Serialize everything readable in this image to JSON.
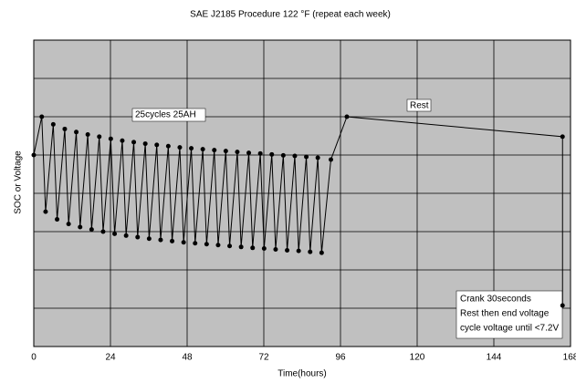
{
  "chart_data": {
    "type": "line",
    "title": "SAE J2185 Procedure 122 °F (repeat each week)",
    "x_label": "Time(hours)",
    "y_label": "SOC  or  Voltage",
    "x": [
      0,
      2.5,
      3.7,
      6.1,
      7.3,
      9.7,
      10.9,
      13.3,
      14.5,
      16.9,
      18.1,
      20.5,
      21.7,
      24.1,
      25.3,
      27.7,
      28.9,
      31.3,
      32.5,
      34.9,
      36.1,
      38.5,
      39.7,
      42.1,
      43.3,
      45.7,
      46.9,
      49.3,
      50.5,
      52.9,
      54.1,
      56.5,
      57.7,
      60.1,
      61.3,
      63.7,
      64.9,
      67.3,
      68.5,
      70.9,
      72.1,
      74.5,
      75.7,
      78.1,
      79.3,
      81.7,
      82.9,
      85.3,
      86.5,
      88.9,
      90.1,
      93,
      98,
      165.5,
      165.5
    ],
    "values": [
      62.5,
      75,
      44,
      72.5,
      41.5,
      71,
      40,
      70,
      39,
      69.2,
      38.2,
      68.5,
      37.5,
      67.8,
      36.8,
      67.2,
      36.2,
      66.7,
      35.7,
      66.2,
      35.2,
      65.8,
      34.8,
      65.4,
      34.4,
      65,
      34,
      64.7,
      33.7,
      64.4,
      33.4,
      64.1,
      33.1,
      63.8,
      32.8,
      63.5,
      32.5,
      63.2,
      32.2,
      63,
      32,
      62.7,
      31.7,
      62.4,
      31.4,
      62.2,
      31.2,
      61.9,
      30.9,
      61.6,
      30.6,
      61,
      75,
      68.5,
      13.4
    ],
    "color": "#000000",
    "xlim": [
      0,
      168
    ],
    "xticks": [
      0,
      24,
      48,
      72,
      96,
      120,
      144,
      168
    ],
    "ylim": [
      0,
      100
    ],
    "yticks": [
      0,
      12.5,
      25,
      37.5,
      50,
      62.5,
      75,
      87.5,
      100
    ],
    "grid": true,
    "annotations": [
      "25cycles 25AH",
      "Rest",
      "Crank 30seconds",
      "Rest then end voltage",
      "cycle voltage until <7.2V"
    ]
  }
}
